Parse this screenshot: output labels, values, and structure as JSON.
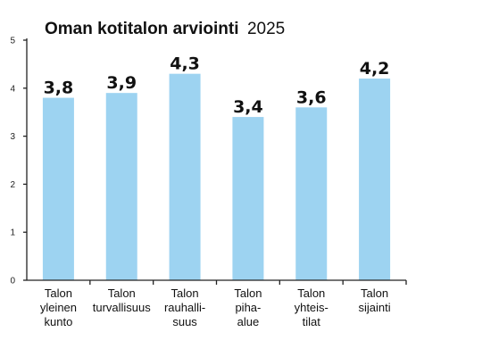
{
  "chart_data": {
    "type": "bar",
    "title": "Oman kotitalon arviointi",
    "title_year": "2025",
    "xlabel": "",
    "ylabel": "",
    "ylim": [
      0,
      5
    ],
    "yticks": [
      0,
      1,
      2,
      3,
      4,
      5
    ],
    "grid": false,
    "legend": "none",
    "bar_color": "#9dd3f1",
    "categories": [
      [
        "Talon",
        "yleinen",
        "kunto"
      ],
      [
        "Talon",
        "turvallisuus"
      ],
      [
        "Talon",
        "rauhalli-",
        "suus"
      ],
      [
        "Talon",
        "piha-",
        "alue"
      ],
      [
        "Talon",
        "yhteis-",
        "tilat"
      ],
      [
        "Talon",
        "sijainti"
      ]
    ],
    "values": [
      3.8,
      3.9,
      4.3,
      3.4,
      3.6,
      4.2
    ],
    "value_labels": [
      "3,8",
      "3,9",
      "4,3",
      "3,4",
      "3,6",
      "4,2"
    ]
  }
}
